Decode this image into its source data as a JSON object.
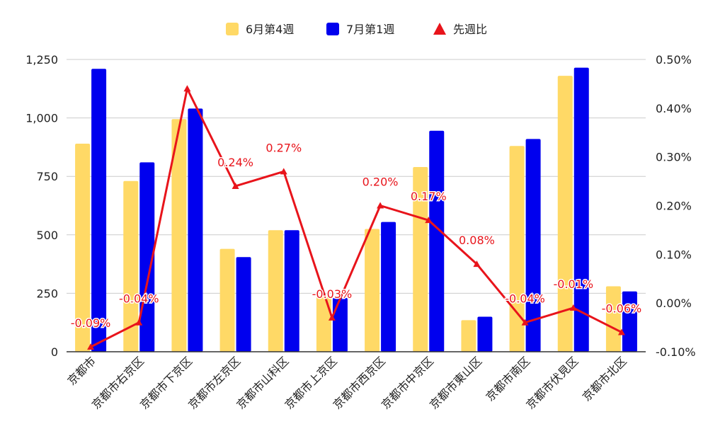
{
  "chart_data": {
    "type": "bar",
    "categories": [
      "京都市",
      "京都市右京区",
      "京都市下京区",
      "京都市左京区",
      "京都市山科区",
      "京都市上京区",
      "京都市西京区",
      "京都市中京区",
      "京都市東山区",
      "京都市南区",
      "京都市伏見区",
      "京都市北区"
    ],
    "series": [
      {
        "name": "6月第4週",
        "type": "bar",
        "axis": "left",
        "color": "#ffd966",
        "values": [
          890,
          730,
          995,
          440,
          520,
          240,
          525,
          790,
          135,
          880,
          1180,
          280
        ]
      },
      {
        "name": "7月第1週",
        "type": "bar",
        "axis": "left",
        "color": "#0000ee",
        "values": [
          1210,
          810,
          1040,
          405,
          520,
          230,
          555,
          945,
          150,
          910,
          1215,
          258
        ]
      },
      {
        "name": "先週比",
        "type": "line",
        "axis": "right",
        "color": "#e8141b",
        "marker": "triangle",
        "values": [
          -0.09,
          -0.04,
          0.44,
          0.24,
          0.27,
          -0.03,
          0.2,
          0.17,
          0.08,
          -0.04,
          -0.01,
          -0.06
        ],
        "labels": [
          "-0.09%",
          "-0.04%",
          "",
          "0.24%",
          "0.27%",
          "-0.03%",
          "0.20%",
          "0.17%",
          "0.08%",
          "-0.04%",
          "-0.01%",
          "-0.06%"
        ]
      }
    ],
    "y_left": {
      "ylim": [
        0,
        1250
      ],
      "ticks": [
        0,
        250,
        500,
        750,
        1000,
        1250
      ],
      "tick_labels": [
        "0",
        "250",
        "500",
        "750",
        "1,000",
        "1,250"
      ]
    },
    "y_right": {
      "ylim": [
        -0.1,
        0.5
      ],
      "ticks": [
        -0.1,
        0.0,
        0.1,
        0.2,
        0.3,
        0.4,
        0.5
      ],
      "tick_labels": [
        "-0.10%",
        "0.00%",
        "0.10%",
        "0.20%",
        "0.30%",
        "0.40%",
        "0.50%"
      ]
    },
    "grid": true,
    "legend_position": "top-center",
    "legend": [
      {
        "label": "6月第4週",
        "symbol": "square",
        "color": "#ffd966"
      },
      {
        "label": "7月第1週",
        "symbol": "square",
        "color": "#0000ee"
      },
      {
        "label": "先週比",
        "symbol": "triangle",
        "color": "#e8141b"
      }
    ]
  }
}
